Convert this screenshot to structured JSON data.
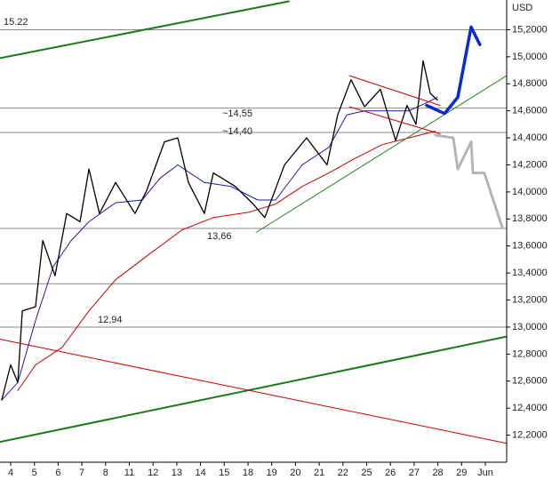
{
  "chart_data": {
    "type": "line",
    "unit": "USD",
    "categories": [
      "4",
      "5",
      "6",
      "7",
      "8",
      "11",
      "12",
      "13",
      "14",
      "15",
      "18",
      "19",
      "20",
      "21",
      "22",
      "25",
      "26",
      "27",
      "28",
      "29",
      "Jun"
    ],
    "xlim": [
      -0.45,
      20.9
    ],
    "ylim": [
      12.0,
      15.42
    ],
    "yticks": [
      {
        "value": 12.2,
        "label": "12,2000"
      },
      {
        "value": 12.4,
        "label": "12,4000"
      },
      {
        "value": 12.6,
        "label": "12,6000"
      },
      {
        "value": 12.8,
        "label": "12,8000"
      },
      {
        "value": 13.0,
        "label": "13,0000"
      },
      {
        "value": 13.2,
        "label": "13,2000"
      },
      {
        "value": 13.4,
        "label": "13,4000"
      },
      {
        "value": 13.6,
        "label": "13,6000"
      },
      {
        "value": 13.8,
        "label": "13,8000"
      },
      {
        "value": 14.0,
        "label": "14,0000"
      },
      {
        "value": 14.2,
        "label": "14,2000"
      },
      {
        "value": 14.4,
        "label": "14,4000"
      },
      {
        "value": 14.6,
        "label": "14,6000"
      },
      {
        "value": 14.8,
        "label": "14,8000"
      },
      {
        "value": 15.0,
        "label": "15,0000"
      },
      {
        "value": 15.2,
        "label": "15,2000"
      }
    ],
    "levels": [
      {
        "value": 15.2,
        "label": "15.22"
      },
      {
        "value": 14.62,
        "label": "~14,55"
      },
      {
        "value": 14.44,
        "label": "~14,40"
      },
      {
        "value": 13.73,
        "label": "13,66"
      },
      {
        "value": 13.32
      },
      {
        "value": 13.0,
        "label": "12,94"
      }
    ],
    "level_color": "#888888",
    "series": [
      {
        "color": "#cc0000",
        "width": 1,
        "x": [
          0.3,
          1.05,
          2.17,
          3.3,
          4.42,
          5.92,
          7.23,
          8.54,
          10.04,
          11.16,
          12.28,
          13.41,
          14.53,
          15.66,
          16.78,
          17.9
        ],
        "values": [
          12.53,
          12.72,
          12.85,
          13.12,
          13.35,
          13.55,
          13.72,
          13.81,
          13.85,
          13.91,
          14.04,
          14.14,
          14.25,
          14.35,
          14.4,
          14.45
        ]
      },
      {
        "color": "#1a1aaa",
        "width": 1,
        "x": [
          -0.38,
          0.3,
          1.05,
          1.8,
          2.55,
          3.3,
          4.42,
          5.54,
          6.29,
          7.04,
          8.16,
          9.29,
          10.41,
          11.16,
          12.28,
          13.41,
          14.16,
          14.91,
          16.03,
          16.78,
          17.53,
          17.98
        ],
        "values": [
          12.46,
          12.59,
          13.05,
          13.45,
          13.64,
          13.78,
          13.92,
          13.94,
          14.1,
          14.2,
          14.07,
          14.04,
          13.94,
          13.94,
          14.2,
          14.33,
          14.57,
          14.6,
          14.6,
          14.6,
          14.66,
          14.7
        ]
      },
      {
        "color": "#000000",
        "width": 1.3,
        "x": [
          -0.38,
          0,
          0.3,
          0.49,
          1.05,
          1.35,
          1.87,
          2.36,
          2.92,
          3.3,
          3.74,
          4.42,
          5.24,
          5.73,
          6.48,
          7.04,
          7.49,
          8.16,
          8.54,
          9.47,
          10.22,
          10.71,
          11.54,
          12.47,
          13.33,
          13.78,
          14.34,
          14.91,
          15.58,
          16.22,
          16.7,
          17.08,
          17.38,
          17.68,
          17.98
        ],
        "values": [
          12.46,
          12.72,
          12.59,
          13.12,
          13.15,
          13.64,
          13.38,
          13.84,
          13.78,
          14.17,
          13.84,
          14.07,
          13.84,
          14.01,
          14.37,
          14.4,
          14.07,
          13.84,
          14.14,
          14.04,
          13.91,
          13.81,
          14.2,
          14.4,
          14.2,
          14.57,
          14.83,
          14.63,
          14.76,
          14.38,
          14.64,
          14.5,
          14.97,
          14.73,
          14.68
        ]
      },
      {
        "color": "#1a7a1a",
        "width": 2,
        "x": [
          -0.45,
          11.72
        ],
        "values": [
          14.99,
          15.41
        ]
      },
      {
        "color": "#1a7a1a",
        "width": 2,
        "x": [
          -0.45,
          20.9
        ],
        "values": [
          12.15,
          12.93
        ]
      },
      {
        "color": "#cc0000",
        "width": 1,
        "x": [
          -0.45,
          20.9
        ],
        "values": [
          12.91,
          12.14
        ]
      },
      {
        "color": "#2a8a2a",
        "width": 1,
        "x": [
          10.34,
          20.9
        ],
        "values": [
          13.7,
          14.86
        ]
      },
      {
        "color": "#cc0000",
        "width": 1,
        "x": [
          14.27,
          18.09
        ],
        "values": [
          14.86,
          14.64
        ]
      },
      {
        "color": "#cc0000",
        "width": 1,
        "x": [
          14.27,
          18.09
        ],
        "values": [
          14.63,
          14.43
        ]
      },
      {
        "color": "#0a2ad8",
        "width": 3.5,
        "x": [
          17.53,
          18.28,
          18.84,
          19.4,
          19.77
        ],
        "values": [
          14.64,
          14.58,
          14.7,
          15.22,
          15.09
        ]
      },
      {
        "color": "#b4b4b4",
        "width": 3,
        "x": [
          17.9,
          18.65,
          18.84,
          19.4,
          19.48,
          19.96,
          20.71
        ],
        "values": [
          14.42,
          14.4,
          14.17,
          14.37,
          14.14,
          14.14,
          13.74
        ]
      }
    ]
  }
}
